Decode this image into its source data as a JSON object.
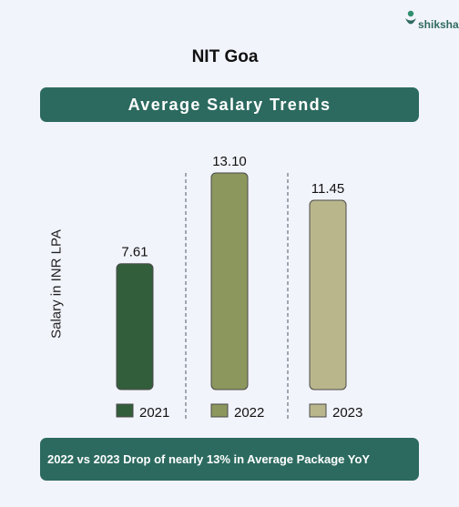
{
  "brand": {
    "name": "shiksha",
    "logo_icon": "shiksha-logo-icon"
  },
  "page": {
    "title": "NIT Goa"
  },
  "banner": {
    "text": "Average Salary Trends"
  },
  "chart_data": {
    "type": "bar",
    "categories": [
      "2021",
      "2022",
      "2023"
    ],
    "values": [
      7.61,
      13.1,
      11.45
    ],
    "value_labels": [
      "7.61",
      "13.10",
      "11.45"
    ],
    "title": "",
    "xlabel": "",
    "ylabel": "Salary in INR LPA",
    "ylim": [
      0,
      13.1
    ],
    "colors": [
      "#335e3b",
      "#8b975d",
      "#bab68c"
    ],
    "grid": false,
    "legend": "bottom"
  },
  "footer": {
    "text": "2022 vs 2023 Drop of nearly 13% in Average Package YoY"
  }
}
